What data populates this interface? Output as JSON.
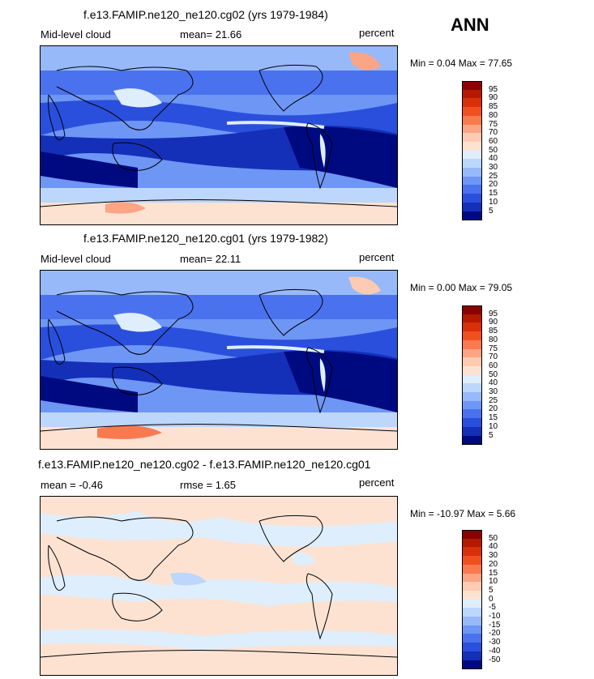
{
  "season": "ANN",
  "panels": [
    {
      "title": "f.e13.FAMIP.ne120_ne120.cg02 (yrs 1979-1984)",
      "left_label": "Mid-level cloud",
      "mid_label": "mean=  21.66",
      "units": "percent",
      "minmax": "Min =   0.04 Max =  77.65",
      "levels": [
        "95",
        "90",
        "85",
        "80",
        "75",
        "70",
        "60",
        "50",
        "40",
        "30",
        "25",
        "20",
        "15",
        "10",
        "5"
      ]
    },
    {
      "title": "f.e13.FAMIP.ne120_ne120.cg01 (yrs 1979-1982)",
      "left_label": "Mid-level cloud",
      "mid_label": "mean=  22.11",
      "units": "percent",
      "minmax": "Min =   0.00 Max =  79.05",
      "levels": [
        "95",
        "90",
        "85",
        "80",
        "75",
        "70",
        "60",
        "50",
        "40",
        "30",
        "25",
        "20",
        "15",
        "10",
        "5"
      ]
    },
    {
      "title": "f.e13.FAMIP.ne120_ne120.cg02 - f.e13.FAMIP.ne120_ne120.cg01",
      "left_label": "mean =  -0.46",
      "mid_label": "rmse =   1.65",
      "units": "percent",
      "minmax": "Min = -10.97 Max =   5.66",
      "levels": [
        "50",
        "40",
        "30",
        "20",
        "15",
        "10",
        "5",
        "0",
        "-5",
        "-10",
        "-15",
        "-20",
        "-30",
        "-40",
        "-50"
      ]
    }
  ],
  "colors": {
    "field_scale": [
      "#8b0000",
      "#b41a00",
      "#d8300a",
      "#f05020",
      "#fa7a50",
      "#fca484",
      "#fdcbb2",
      "#fde2d2",
      "#deeefc",
      "#bcd6fc",
      "#97b9fa",
      "#6e96f5",
      "#4a72ee",
      "#2a4fdc",
      "#1430b8",
      "#000a80"
    ],
    "diff_scale": [
      "#8b0000",
      "#b41a00",
      "#d8300a",
      "#f05020",
      "#fa7a50",
      "#fca484",
      "#fdcbb2",
      "#fde2d2",
      "#deeefc",
      "#bcd6fc",
      "#97b9fa",
      "#6e96f5",
      "#4a72ee",
      "#2a4fdc",
      "#1430b8",
      "#000a80"
    ]
  }
}
